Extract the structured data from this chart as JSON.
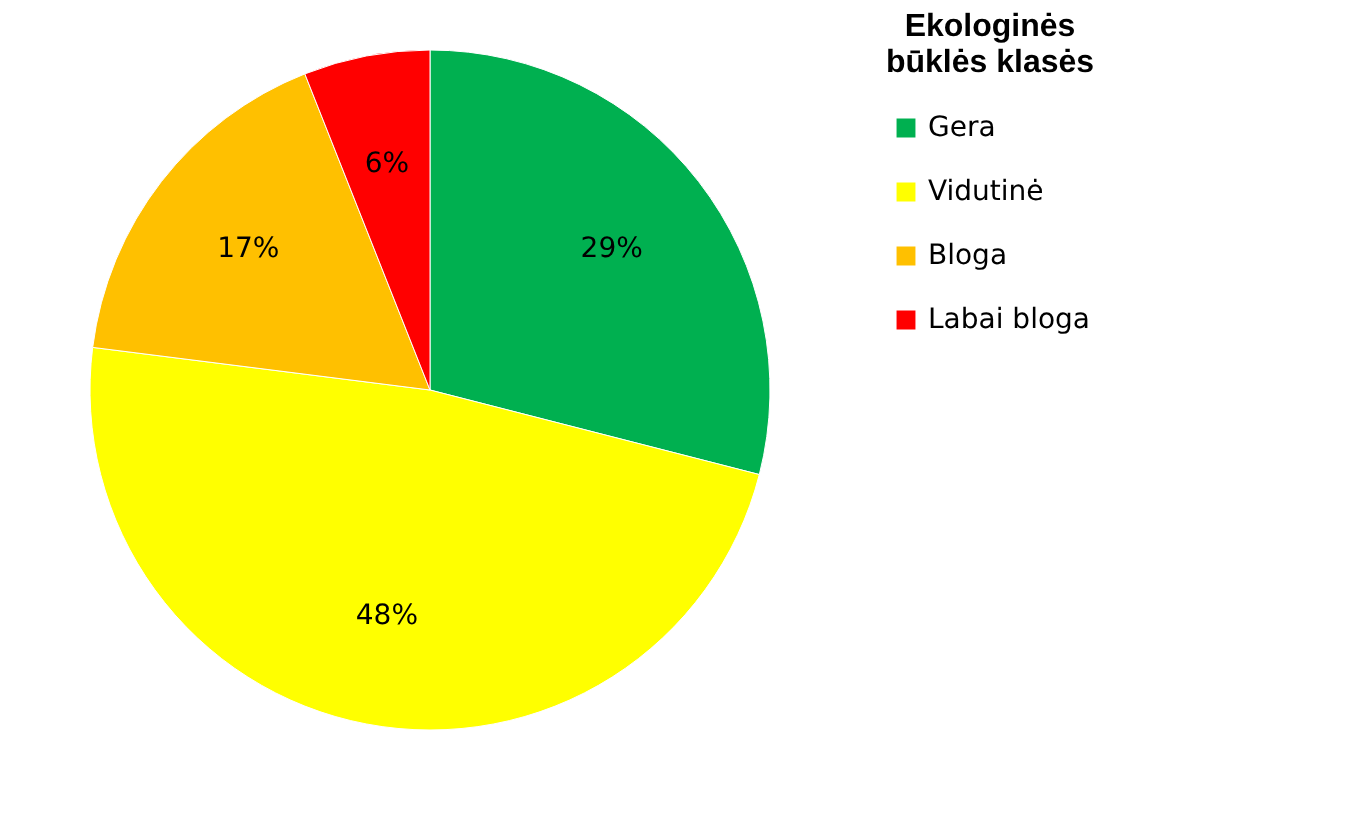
{
  "chart_data": {
    "type": "pie",
    "legend_title": "Ekologinės būklės klasės",
    "categories": [
      "Gera",
      "Vidutinė",
      "Bloga",
      "Labai bloga"
    ],
    "values": [
      29,
      48,
      17,
      6
    ],
    "colors": [
      "#00b050",
      "#ffff00",
      "#ffc000",
      "#ff0000"
    ],
    "value_labels": [
      "29%",
      "48%",
      "17%",
      "6%"
    ],
    "legend": "right"
  }
}
